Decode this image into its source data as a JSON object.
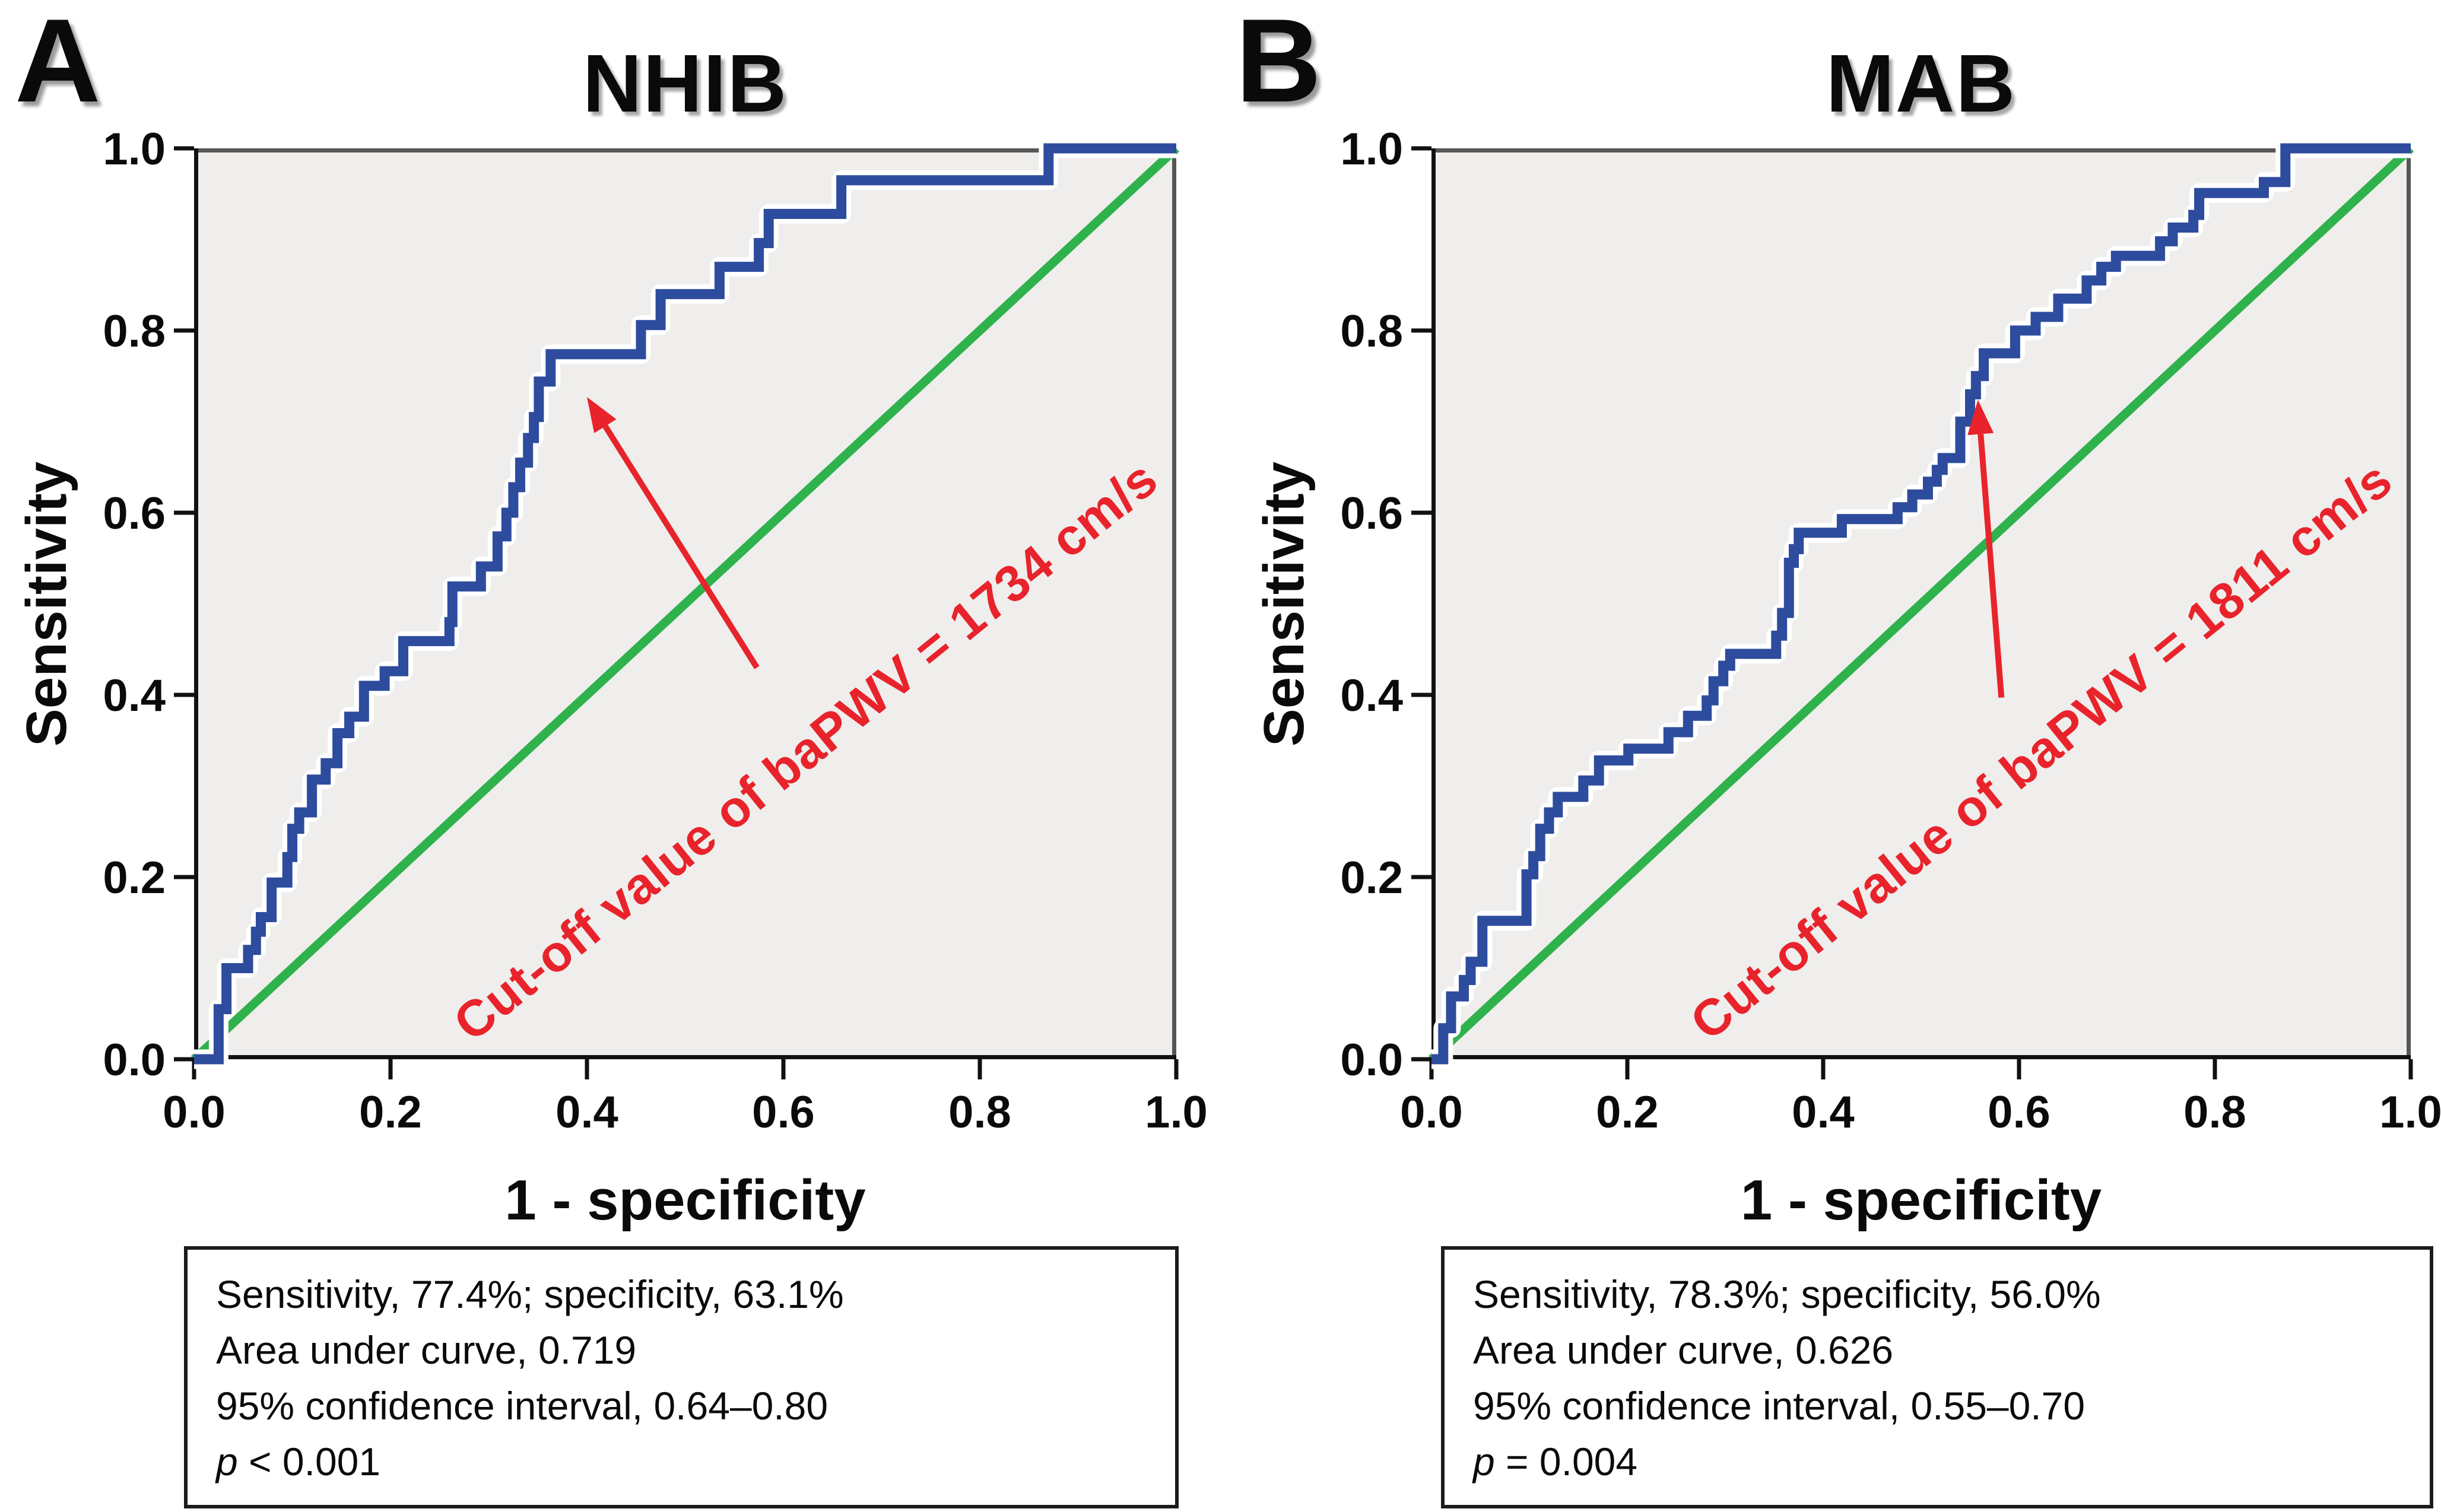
{
  "figure": {
    "background": "#ffffff",
    "panels": [
      {
        "label": "A",
        "title": "NHIB",
        "x_label": "1 - specificity",
        "y_label": "Sensitivity",
        "x_ticks": [
          "0.0",
          "0.2",
          "0.4",
          "0.6",
          "0.8",
          "1.0"
        ],
        "y_ticks": [
          "1.0",
          "0.8",
          "0.6",
          "0.4",
          "0.2",
          "0.0"
        ],
        "stats": [
          "Sensitivity, 77.4%; specificity, 63.1%",
          "Area under curve, 0.719",
          "95% confidence interval, 0.64–0.80"
        ],
        "p_label": "p",
        "p_value": " < 0.001"
      },
      {
        "label": "B",
        "title": "MAB",
        "x_label": "1 - specificity",
        "y_label": "Sensitivity",
        "x_ticks": [
          "0.0",
          "0.2",
          "0.4",
          "0.6",
          "0.8",
          "1.0"
        ],
        "y_ticks": [
          "1.0",
          "0.8",
          "0.6",
          "0.4",
          "0.2",
          "0.0"
        ],
        "stats": [
          "Sensitivity, 78.3%; specificity, 56.0%",
          "Area under curve, 0.626",
          "95% confidence interval, 0.55–0.70"
        ],
        "p_label": "p",
        "p_value": " = 0.004"
      }
    ]
  },
  "chart_data": [
    {
      "type": "line",
      "subtype": "roc_step_curve",
      "panel": "A",
      "title": "NHIB",
      "xlabel": "1 - specificity",
      "ylabel": "Sensitivity",
      "xlim": [
        0,
        1
      ],
      "ylim": [
        0,
        1
      ],
      "grid": false,
      "legend": "none",
      "plot_bg": "#efeeec",
      "x_tick_values": [
        0,
        0.2,
        0.4,
        0.6,
        0.8,
        1
      ],
      "y_tick_values": [
        0,
        0.2,
        0.4,
        0.6,
        0.8,
        1
      ],
      "annotation": {
        "text": "Cut-off value of baPWV = 1734 cm/s",
        "color": "#e8232b",
        "rotation_deg": -39,
        "arrow_from": [
          0.573,
          0.43
        ],
        "arrow_to": [
          0.4,
          0.727
        ]
      },
      "metrics": {
        "sensitivity_pct": 77.4,
        "specificity_pct": 63.1,
        "auc": 0.719,
        "ci_95": [
          0.64,
          0.8
        ],
        "p": "< 0.001",
        "cutoff_baPWV_cm_s": 1734
      },
      "series": [
        {
          "name": "ROC curve",
          "color": "#2e4c9e",
          "casing": "#ffffff",
          "points": [
            [
              0,
              0
            ],
            [
              0.025,
              0
            ],
            [
              0.025,
              0.055
            ],
            [
              0.033,
              0.055
            ],
            [
              0.033,
              0.1
            ],
            [
              0.055,
              0.1
            ],
            [
              0.055,
              0.12
            ],
            [
              0.063,
              0.12
            ],
            [
              0.063,
              0.14
            ],
            [
              0.068,
              0.14
            ],
            [
              0.068,
              0.156
            ],
            [
              0.079,
              0.156
            ],
            [
              0.079,
              0.194
            ],
            [
              0.095,
              0.194
            ],
            [
              0.095,
              0.222
            ],
            [
              0.1,
              0.222
            ],
            [
              0.1,
              0.253
            ],
            [
              0.107,
              0.253
            ],
            [
              0.107,
              0.271
            ],
            [
              0.12,
              0.271
            ],
            [
              0.12,
              0.307
            ],
            [
              0.134,
              0.307
            ],
            [
              0.134,
              0.325
            ],
            [
              0.146,
              0.325
            ],
            [
              0.146,
              0.358
            ],
            [
              0.158,
              0.358
            ],
            [
              0.158,
              0.376
            ],
            [
              0.173,
              0.376
            ],
            [
              0.173,
              0.41
            ],
            [
              0.194,
              0.41
            ],
            [
              0.194,
              0.426
            ],
            [
              0.213,
              0.426
            ],
            [
              0.213,
              0.459
            ],
            [
              0.26,
              0.459
            ],
            [
              0.26,
              0.48
            ],
            [
              0.263,
              0.48
            ],
            [
              0.263,
              0.519
            ],
            [
              0.292,
              0.519
            ],
            [
              0.292,
              0.541
            ],
            [
              0.309,
              0.541
            ],
            [
              0.309,
              0.574
            ],
            [
              0.318,
              0.574
            ],
            [
              0.318,
              0.6
            ],
            [
              0.325,
              0.6
            ],
            [
              0.325,
              0.628
            ],
            [
              0.332,
              0.628
            ],
            [
              0.332,
              0.655
            ],
            [
              0.34,
              0.655
            ],
            [
              0.34,
              0.682
            ],
            [
              0.346,
              0.682
            ],
            [
              0.346,
              0.705
            ],
            [
              0.351,
              0.705
            ],
            [
              0.351,
              0.744
            ],
            [
              0.363,
              0.744
            ],
            [
              0.363,
              0.774
            ],
            [
              0.455,
              0.774
            ],
            [
              0.455,
              0.806
            ],
            [
              0.475,
              0.806
            ],
            [
              0.475,
              0.84
            ],
            [
              0.535,
              0.84
            ],
            [
              0.535,
              0.87
            ],
            [
              0.575,
              0.87
            ],
            [
              0.575,
              0.896
            ],
            [
              0.585,
              0.896
            ],
            [
              0.585,
              0.928
            ],
            [
              0.659,
              0.928
            ],
            [
              0.659,
              0.965
            ],
            [
              0.87,
              0.965
            ],
            [
              0.87,
              1.0
            ],
            [
              1.0,
              1.0
            ]
          ]
        },
        {
          "name": "Reference diagonal",
          "color": "#2fb24c",
          "points": [
            [
              0,
              0
            ],
            [
              1,
              1
            ]
          ]
        }
      ]
    },
    {
      "type": "line",
      "subtype": "roc_step_curve",
      "panel": "B",
      "title": "MAB",
      "xlabel": "1 - specificity",
      "ylabel": "Sensitivity",
      "xlim": [
        0,
        1
      ],
      "ylim": [
        0,
        1
      ],
      "grid": false,
      "legend": "none",
      "plot_bg": "#efeeec",
      "x_tick_values": [
        0,
        0.2,
        0.4,
        0.6,
        0.8,
        1
      ],
      "y_tick_values": [
        0,
        0.2,
        0.4,
        0.6,
        0.8,
        1
      ],
      "annotation": {
        "text": "Cut-off value of baPWV = 1811 cm/s",
        "color": "#e8232b",
        "rotation_deg": -39,
        "arrow_from": [
          0.582,
          0.397
        ],
        "arrow_to": [
          0.558,
          0.724
        ]
      },
      "metrics": {
        "sensitivity_pct": 78.3,
        "specificity_pct": 56.0,
        "auc": 0.626,
        "ci_95": [
          0.55,
          0.7
        ],
        "p": "= 0.004",
        "cutoff_baPWV_cm_s": 1811
      },
      "series": [
        {
          "name": "ROC curve",
          "color": "#2e4c9e",
          "casing": "#ffffff",
          "points": [
            [
              0,
              0
            ],
            [
              0.012,
              0
            ],
            [
              0.012,
              0.034
            ],
            [
              0.02,
              0.034
            ],
            [
              0.02,
              0.069
            ],
            [
              0.033,
              0.069
            ],
            [
              0.033,
              0.087
            ],
            [
              0.04,
              0.087
            ],
            [
              0.04,
              0.107
            ],
            [
              0.052,
              0.107
            ],
            [
              0.052,
              0.152
            ],
            [
              0.097,
              0.152
            ],
            [
              0.097,
              0.203
            ],
            [
              0.104,
              0.203
            ],
            [
              0.104,
              0.223
            ],
            [
              0.111,
              0.223
            ],
            [
              0.111,
              0.253
            ],
            [
              0.12,
              0.253
            ],
            [
              0.12,
              0.271
            ],
            [
              0.129,
              0.271
            ],
            [
              0.129,
              0.288
            ],
            [
              0.155,
              0.288
            ],
            [
              0.155,
              0.306
            ],
            [
              0.171,
              0.306
            ],
            [
              0.171,
              0.328
            ],
            [
              0.201,
              0.328
            ],
            [
              0.201,
              0.341
            ],
            [
              0.242,
              0.341
            ],
            [
              0.242,
              0.359
            ],
            [
              0.262,
              0.359
            ],
            [
              0.262,
              0.377
            ],
            [
              0.281,
              0.377
            ],
            [
              0.281,
              0.394
            ],
            [
              0.288,
              0.394
            ],
            [
              0.288,
              0.415
            ],
            [
              0.298,
              0.415
            ],
            [
              0.298,
              0.432
            ],
            [
              0.305,
              0.432
            ],
            [
              0.305,
              0.445
            ],
            [
              0.352,
              0.445
            ],
            [
              0.352,
              0.465
            ],
            [
              0.358,
              0.465
            ],
            [
              0.358,
              0.49
            ],
            [
              0.365,
              0.49
            ],
            [
              0.365,
              0.545
            ],
            [
              0.37,
              0.545
            ],
            [
              0.37,
              0.56
            ],
            [
              0.375,
              0.56
            ],
            [
              0.375,
              0.578
            ],
            [
              0.419,
              0.578
            ],
            [
              0.419,
              0.593
            ],
            [
              0.476,
              0.593
            ],
            [
              0.476,
              0.606
            ],
            [
              0.491,
              0.606
            ],
            [
              0.491,
              0.62
            ],
            [
              0.507,
              0.62
            ],
            [
              0.507,
              0.634
            ],
            [
              0.516,
              0.634
            ],
            [
              0.516,
              0.647
            ],
            [
              0.522,
              0.647
            ],
            [
              0.522,
              0.66
            ],
            [
              0.54,
              0.66
            ],
            [
              0.54,
              0.7
            ],
            [
              0.55,
              0.7
            ],
            [
              0.55,
              0.73
            ],
            [
              0.556,
              0.73
            ],
            [
              0.556,
              0.75
            ],
            [
              0.564,
              0.75
            ],
            [
              0.564,
              0.775
            ],
            [
              0.596,
              0.775
            ],
            [
              0.596,
              0.8
            ],
            [
              0.617,
              0.8
            ],
            [
              0.617,
              0.815
            ],
            [
              0.64,
              0.815
            ],
            [
              0.64,
              0.835
            ],
            [
              0.669,
              0.835
            ],
            [
              0.669,
              0.855
            ],
            [
              0.684,
              0.855
            ],
            [
              0.684,
              0.87
            ],
            [
              0.699,
              0.87
            ],
            [
              0.699,
              0.882
            ],
            [
              0.744,
              0.882
            ],
            [
              0.744,
              0.898
            ],
            [
              0.757,
              0.898
            ],
            [
              0.757,
              0.913
            ],
            [
              0.778,
              0.913
            ],
            [
              0.778,
              0.927
            ],
            [
              0.784,
              0.927
            ],
            [
              0.784,
              0.951
            ],
            [
              0.85,
              0.951
            ],
            [
              0.85,
              0.963
            ],
            [
              0.872,
              0.963
            ],
            [
              0.872,
              1.0
            ],
            [
              1.0,
              1.0
            ]
          ]
        },
        {
          "name": "Reference diagonal",
          "color": "#2fb24c",
          "points": [
            [
              0,
              0
            ],
            [
              1,
              1
            ]
          ]
        }
      ]
    }
  ]
}
